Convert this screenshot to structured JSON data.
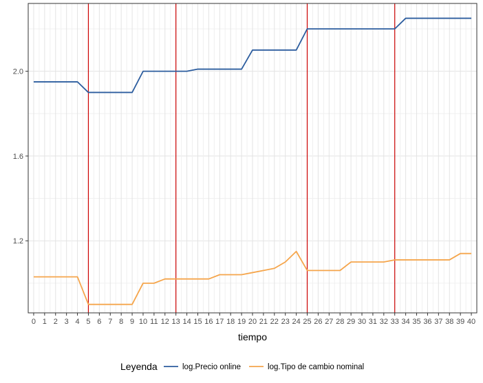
{
  "chart_data": {
    "type": "line",
    "xlabel": "tiempo",
    "ylabel": "",
    "title": "",
    "x": [
      0,
      1,
      2,
      3,
      4,
      5,
      6,
      7,
      8,
      9,
      10,
      11,
      12,
      13,
      14,
      15,
      16,
      17,
      18,
      19,
      20,
      21,
      22,
      23,
      24,
      25,
      26,
      27,
      28,
      29,
      30,
      31,
      32,
      33,
      34,
      35,
      36,
      37,
      38,
      39,
      40
    ],
    "xlim": [
      -0.5,
      40.5
    ],
    "ylim": [
      0.86,
      2.32
    ],
    "y_ticks": [
      1.2,
      1.6,
      2.0
    ],
    "y_tick_labels": [
      "1.2",
      "1.6",
      "2.0"
    ],
    "grid": true,
    "vlines": [
      5,
      13,
      25,
      33
    ],
    "vline_color": "#cc0000",
    "legend_title": "Leyenda",
    "legend_position": "bottom",
    "series": [
      {
        "name": "log.Precio online",
        "color": "#2b5c9e",
        "values": [
          1.95,
          1.95,
          1.95,
          1.95,
          1.95,
          1.9,
          1.9,
          1.9,
          1.9,
          1.9,
          2.0,
          2.0,
          2.0,
          2.0,
          2.0,
          2.01,
          2.01,
          2.01,
          2.01,
          2.01,
          2.1,
          2.1,
          2.1,
          2.1,
          2.1,
          2.2,
          2.2,
          2.2,
          2.2,
          2.2,
          2.2,
          2.2,
          2.2,
          2.2,
          2.25,
          2.25,
          2.25,
          2.25,
          2.25,
          2.25,
          2.25
        ]
      },
      {
        "name": "log.Tipo de cambio nominal",
        "color": "#f5a54b",
        "values": [
          1.03,
          1.03,
          1.03,
          1.03,
          1.03,
          0.9,
          0.9,
          0.9,
          0.9,
          0.9,
          1.0,
          1.0,
          1.02,
          1.02,
          1.02,
          1.02,
          1.02,
          1.04,
          1.04,
          1.04,
          1.05,
          1.06,
          1.07,
          1.1,
          1.15,
          1.06,
          1.06,
          1.06,
          1.06,
          1.1,
          1.1,
          1.1,
          1.1,
          1.11,
          1.11,
          1.11,
          1.11,
          1.11,
          1.11,
          1.14,
          1.14
        ]
      }
    ]
  }
}
